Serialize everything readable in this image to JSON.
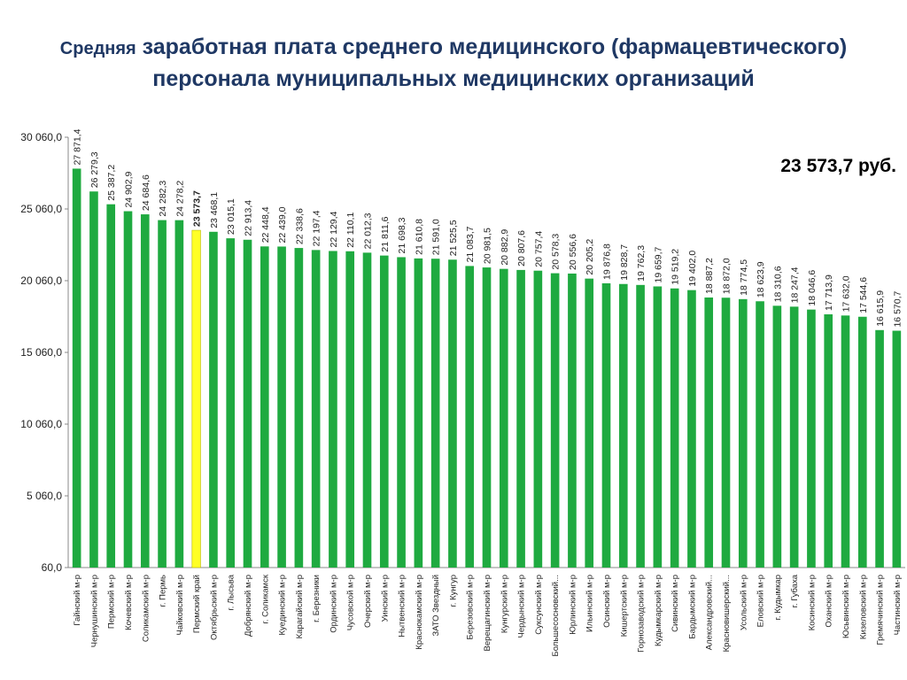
{
  "header": {
    "title_word1": "Средняя",
    "title_line1_rest": "заработная плата среднего медицинского (фармацевтического)",
    "title_line2": "персонала муниципальных медицинских организаций"
  },
  "average_label": "23 573,7 руб.",
  "colors": {
    "bar": "#1faa40",
    "highlight": "#ffff26",
    "title": "#1f3864"
  },
  "chart_data": {
    "type": "bar",
    "ylim": [
      60,
      30060
    ],
    "yticks": [
      60,
      5060,
      10060,
      15060,
      20060,
      25060,
      30060
    ],
    "ytick_labels": [
      "60,0",
      "5 060,0",
      "10 060,0",
      "15 060,0",
      "20 060,0",
      "25 060,0",
      "30 060,0"
    ],
    "highlight_index": 7,
    "categories": [
      "Гайнский м-р",
      "Чернушинский м-р",
      "Пермский м-р",
      "Кочевский м-р",
      "Соликамский м-р",
      "г. Пермь",
      "Чайковский м-р",
      "Пермский край",
      "Октябрьский м-р",
      "г. Лысьва",
      "Добрянский м-р",
      "г. Соликамск",
      "Куединский м-р",
      "Карагайский м-р",
      "г. Березники",
      "Ординский м-р",
      "Чусовской м-р",
      "Очерский м-р",
      "Уинский м-р",
      "Нытвенский м-р",
      "Краснокамский м-р",
      "ЗАТО Звездный",
      "г. Кунгур",
      "Березовский м-р",
      "Верещагинский м-р",
      "Кунгурский м-р",
      "Чердынский м-р",
      "Суксунский м-р",
      "Большесосновский...",
      "Юрлинский м-р",
      "Ильинский м-р",
      "Осинский м-р",
      "Кишертский м-р",
      "Горнозаводский м-р",
      "Кудымкарский м-р",
      "Сивинский м-р",
      "Бардымский м-р",
      "Александровский...",
      "Красновишерский...",
      "Усольский м-р",
      "Еловский м-р",
      "г. Кудымкар",
      "г. Губаха",
      "Косинский м-р",
      "Оханский м-р",
      "Юсьвинский м-р",
      "Кизеловский м-р",
      "Гремячинский м-р",
      "Частинский м-р"
    ],
    "values": [
      27871.4,
      26279.3,
      25387.2,
      24902.9,
      24684.6,
      24282.3,
      24278.2,
      23573.7,
      23468.1,
      23015.1,
      22913.4,
      22448.4,
      22439.0,
      22338.6,
      22197.4,
      22129.4,
      22110.1,
      22012.3,
      21811.6,
      21698.3,
      21610.8,
      21591.0,
      21525.5,
      21083.7,
      20981.5,
      20882.9,
      20807.6,
      20757.4,
      20578.3,
      20556.6,
      20205.2,
      19876.8,
      19828.7,
      19762.3,
      19659.7,
      19519.2,
      19402.0,
      18887.2,
      18872.0,
      18774.5,
      18623.9,
      18310.6,
      18247.4,
      18046.6,
      17713.9,
      17632.0,
      17544.6,
      16615.9,
      16570.7
    ],
    "value_labels": [
      "27 871,4",
      "26 279,3",
      "25 387,2",
      "24 902,9",
      "24 684,6",
      "24 282,3",
      "24 278,2",
      "23 573,7",
      "23 468,1",
      "23 015,1",
      "22 913,4",
      "22 448,4",
      "22 439,0",
      "22 338,6",
      "22 197,4",
      "22 129,4",
      "22 110,1",
      "22 012,3",
      "21 811,6",
      "21 698,3",
      "21 610,8",
      "21 591,0",
      "21 525,5",
      "21 083,7",
      "20 981,5",
      "20 882,9",
      "20 807,6",
      "20 757,4",
      "20 578,3",
      "20 556,6",
      "20 205,2",
      "19 876,8",
      "19 828,7",
      "19 762,3",
      "19 659,7",
      "19 519,2",
      "19 402,0",
      "18 887,2",
      "18 872,0",
      "18 774,5",
      "18 623,9",
      "18 310,6",
      "18 247,4",
      "18 046,6",
      "17 713,9",
      "17 632,0",
      "17 544,6",
      "16 615,9",
      "16 570,7"
    ]
  }
}
